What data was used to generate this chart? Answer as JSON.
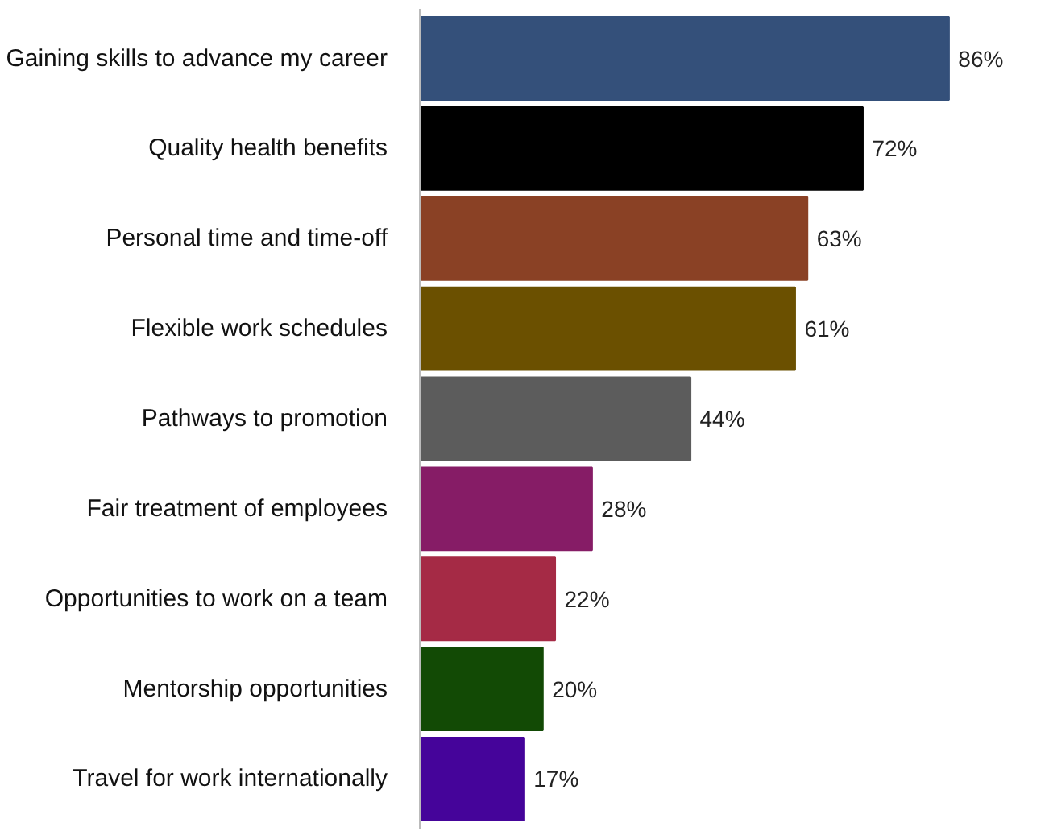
{
  "chart_data": {
    "type": "bar",
    "orientation": "horizontal",
    "categories": [
      "Gaining skills to advance my career",
      "Quality health benefits",
      "Personal time and time-off",
      "Flexible work schedules",
      "Pathways to promotion",
      "Fair treatment of employees",
      "Opportunities to work on a team",
      "Mentorship opportunities",
      "Travel for work internationally"
    ],
    "values": [
      86,
      72,
      63,
      61,
      44,
      28,
      22,
      20,
      17
    ],
    "colors": [
      "#34507a",
      "#000000",
      "#8a4125",
      "#6b5000",
      "#5c5c5c",
      "#861c66",
      "#a52a45",
      "#124a05",
      "#45049a"
    ],
    "value_labels": [
      "86%",
      "72%",
      "63%",
      "61%",
      "44%",
      "28%",
      "22%",
      "20%",
      "17%"
    ],
    "grid": false,
    "tick_labels": "y"
  }
}
